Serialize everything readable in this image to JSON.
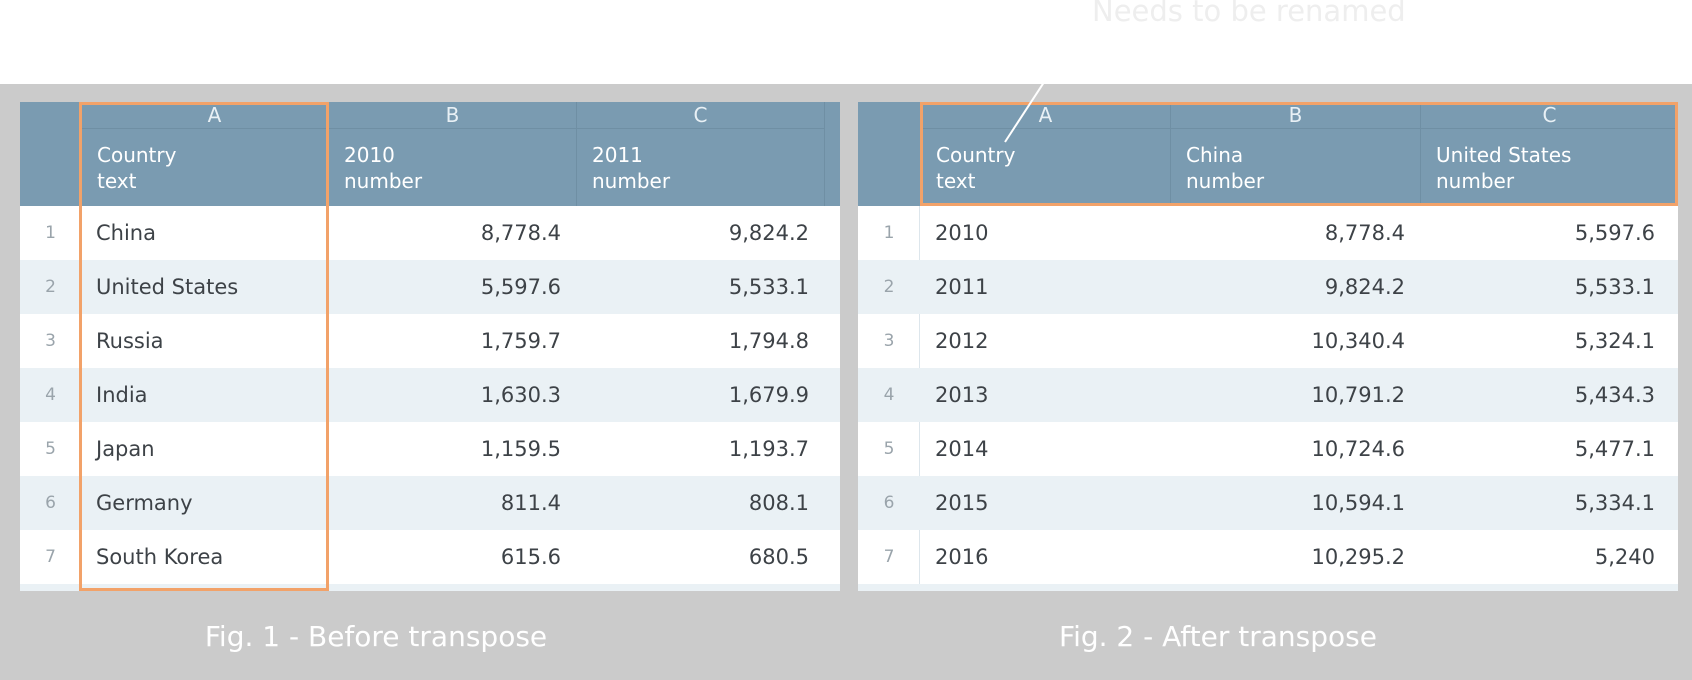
{
  "annotation": "Needs to be renamed",
  "before": {
    "caption": "Fig. 1 - Before transpose",
    "columns": [
      {
        "letter": "A",
        "name": "Country",
        "type": "text"
      },
      {
        "letter": "B",
        "name": "2010",
        "type": "number"
      },
      {
        "letter": "C",
        "name": "2011",
        "type": "number"
      }
    ],
    "rows": [
      {
        "n": "1",
        "c0": "China",
        "c1": "8,778.4",
        "c2": "9,824.2"
      },
      {
        "n": "2",
        "c0": "United States",
        "c1": "5,597.6",
        "c2": "5,533.1"
      },
      {
        "n": "3",
        "c0": "Russia",
        "c1": "1,759.7",
        "c2": "1,794.8"
      },
      {
        "n": "4",
        "c0": "India",
        "c1": "1,630.3",
        "c2": "1,679.9"
      },
      {
        "n": "5",
        "c0": "Japan",
        "c1": "1,159.5",
        "c2": "1,193.7"
      },
      {
        "n": "6",
        "c0": "Germany",
        "c1": "811.4",
        "c2": "808.1"
      },
      {
        "n": "7",
        "c0": "South Korea",
        "c1": "615.6",
        "c2": "680.5"
      }
    ]
  },
  "after": {
    "caption": "Fig. 2 - After transpose",
    "columns": [
      {
        "letter": "A",
        "name": "Country",
        "type": "text"
      },
      {
        "letter": "B",
        "name": "China",
        "type": "number"
      },
      {
        "letter": "C",
        "name": "United States",
        "type": "number"
      }
    ],
    "rows": [
      {
        "n": "1",
        "c0": "2010",
        "c1": "8,778.4",
        "c2": "5,597.6"
      },
      {
        "n": "2",
        "c0": "2011",
        "c1": "9,824.2",
        "c2": "5,533.1"
      },
      {
        "n": "3",
        "c0": "2012",
        "c1": "10,340.4",
        "c2": "5,324.1"
      },
      {
        "n": "4",
        "c0": "2013",
        "c1": "10,791.2",
        "c2": "5,434.3"
      },
      {
        "n": "5",
        "c0": "2014",
        "c1": "10,724.6",
        "c2": "5,477.1"
      },
      {
        "n": "6",
        "c0": "2015",
        "c1": "10,594.1",
        "c2": "5,334.1"
      },
      {
        "n": "7",
        "c0": "2016",
        "c1": "10,295.2",
        "c2": "5,240"
      }
    ]
  },
  "colors": {
    "header": "#7a9bb1",
    "highlight": "#f2a269",
    "alt_row": "#eaf1f5",
    "background": "#cbcbcb"
  }
}
